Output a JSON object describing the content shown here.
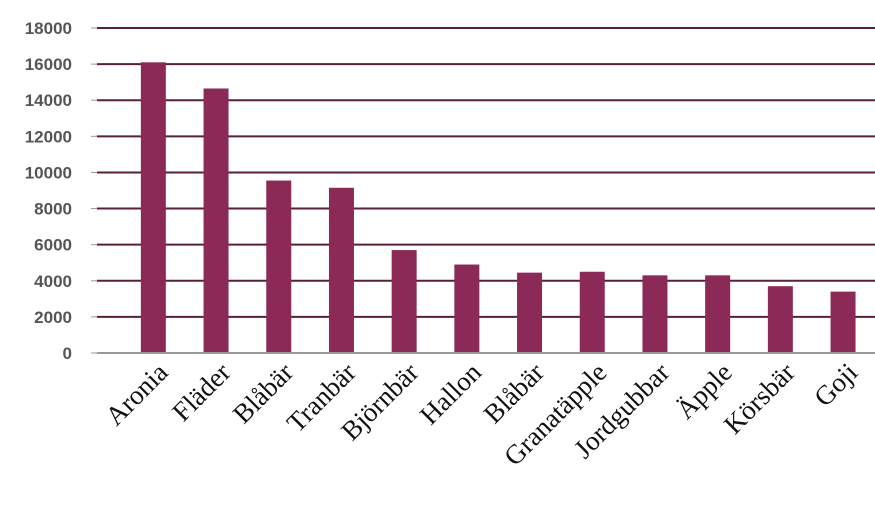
{
  "chart_data": {
    "type": "bar",
    "title": "",
    "xlabel": "",
    "ylabel": "",
    "categories": [
      "Aronia",
      "Fläder",
      "Blåbär",
      "Tranbär",
      "Björnbär",
      "Hallon",
      "Blåbär",
      "Granatäpple",
      "Jordgubbar",
      "Äpple",
      "Körsbär",
      "Goji"
    ],
    "values": [
      16100,
      14650,
      9550,
      9150,
      5700,
      4900,
      4450,
      4500,
      4300,
      4300,
      3700,
      3400
    ],
    "ylim": [
      0,
      18000
    ],
    "yticks": [
      0,
      2000,
      4000,
      6000,
      8000,
      10000,
      12000,
      14000,
      16000,
      18000
    ],
    "grid": true,
    "legend": "none",
    "colors": {
      "bar": "#8b2a57",
      "grid": "#5a1f3c",
      "axis": "#999999"
    }
  }
}
